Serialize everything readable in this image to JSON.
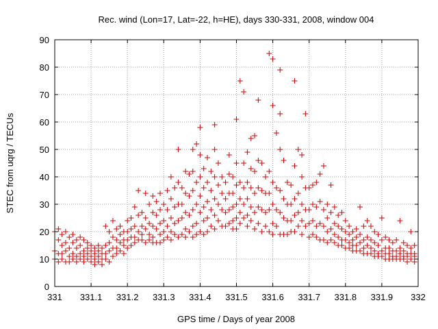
{
  "chart_data": {
    "type": "scatter",
    "title": "Rec. wind (Lon=17, Lat=-22, h=HE), days 330-331, 2008, window 004",
    "xlabel": "GPS time / Days of year 2008",
    "ylabel": "STEC from uqrg / TECUs",
    "xlim": [
      331,
      332
    ],
    "ylim": [
      0,
      90
    ],
    "x_ticks": [
      331,
      331.1,
      331.2,
      331.3,
      331.4,
      331.5,
      331.6,
      331.7,
      331.8,
      331.9,
      332
    ],
    "x_tick_labels": [
      "331",
      "331.1",
      "331.2",
      "331.3",
      "331.4",
      "331.5",
      "331.6",
      "331.7",
      "331.8",
      "331.9",
      "332"
    ],
    "y_ticks": [
      0,
      10,
      20,
      30,
      40,
      50,
      60,
      70,
      80,
      90
    ],
    "y_tick_labels": [
      "0",
      "10",
      "20",
      "30",
      "40",
      "50",
      "60",
      "70",
      "80",
      "90"
    ],
    "grid": true,
    "marker": "+",
    "marker_color": "#cc0000",
    "points": [
      [
        331.0,
        20
      ],
      [
        331.0,
        13
      ],
      [
        331.0,
        10
      ],
      [
        331.01,
        21
      ],
      [
        331.01,
        17
      ],
      [
        331.01,
        12
      ],
      [
        331.01,
        9
      ],
      [
        331.02,
        19
      ],
      [
        331.02,
        15
      ],
      [
        331.02,
        12
      ],
      [
        331.02,
        10
      ],
      [
        331.03,
        20
      ],
      [
        331.03,
        16
      ],
      [
        331.03,
        13
      ],
      [
        331.03,
        9
      ],
      [
        331.04,
        18
      ],
      [
        331.04,
        14
      ],
      [
        331.04,
        11
      ],
      [
        331.04,
        9
      ],
      [
        331.05,
        19
      ],
      [
        331.05,
        16
      ],
      [
        331.05,
        12
      ],
      [
        331.05,
        10
      ],
      [
        331.06,
        17
      ],
      [
        331.06,
        14
      ],
      [
        331.06,
        11
      ],
      [
        331.06,
        9
      ],
      [
        331.07,
        18
      ],
      [
        331.07,
        15
      ],
      [
        331.07,
        12
      ],
      [
        331.07,
        10
      ],
      [
        331.08,
        17
      ],
      [
        331.08,
        13
      ],
      [
        331.08,
        11
      ],
      [
        331.08,
        9
      ],
      [
        331.09,
        16
      ],
      [
        331.09,
        14
      ],
      [
        331.09,
        12
      ],
      [
        331.09,
        10
      ],
      [
        331.1,
        15
      ],
      [
        331.1,
        13
      ],
      [
        331.1,
        11
      ],
      [
        331.1,
        9
      ],
      [
        331.11,
        14
      ],
      [
        331.11,
        12
      ],
      [
        331.11,
        10
      ],
      [
        331.11,
        8
      ],
      [
        331.12,
        15
      ],
      [
        331.12,
        13
      ],
      [
        331.12,
        11
      ],
      [
        331.12,
        9
      ],
      [
        331.13,
        14
      ],
      [
        331.13,
        12
      ],
      [
        331.13,
        10
      ],
      [
        331.13,
        8
      ],
      [
        331.14,
        22
      ],
      [
        331.14,
        15
      ],
      [
        331.14,
        12
      ],
      [
        331.14,
        10
      ],
      [
        331.15,
        20
      ],
      [
        331.15,
        16
      ],
      [
        331.15,
        13
      ],
      [
        331.15,
        9
      ],
      [
        331.16,
        24
      ],
      [
        331.16,
        18
      ],
      [
        331.16,
        14
      ],
      [
        331.16,
        11
      ],
      [
        331.17,
        21
      ],
      [
        331.17,
        17
      ],
      [
        331.17,
        14
      ],
      [
        331.17,
        12
      ],
      [
        331.18,
        22
      ],
      [
        331.18,
        19
      ],
      [
        331.18,
        16
      ],
      [
        331.18,
        13
      ],
      [
        331.19,
        20
      ],
      [
        331.19,
        17
      ],
      [
        331.19,
        15
      ],
      [
        331.19,
        12
      ],
      [
        331.2,
        24
      ],
      [
        331.2,
        20
      ],
      [
        331.2,
        17
      ],
      [
        331.2,
        14
      ],
      [
        331.21,
        25
      ],
      [
        331.21,
        21
      ],
      [
        331.21,
        18
      ],
      [
        331.21,
        15
      ],
      [
        331.22,
        29
      ],
      [
        331.22,
        22
      ],
      [
        331.22,
        18
      ],
      [
        331.22,
        16
      ],
      [
        331.23,
        35
      ],
      [
        331.23,
        26
      ],
      [
        331.23,
        20
      ],
      [
        331.23,
        17
      ],
      [
        331.24,
        27
      ],
      [
        331.24,
        22
      ],
      [
        331.24,
        19
      ],
      [
        331.24,
        17
      ],
      [
        331.25,
        34
      ],
      [
        331.25,
        25
      ],
      [
        331.25,
        21
      ],
      [
        331.25,
        16
      ],
      [
        331.26,
        30
      ],
      [
        331.26,
        23
      ],
      [
        331.26,
        19
      ],
      [
        331.26,
        17
      ],
      [
        331.27,
        33
      ],
      [
        331.27,
        27
      ],
      [
        331.27,
        22
      ],
      [
        331.27,
        18
      ],
      [
        331.27,
        16
      ],
      [
        331.28,
        31
      ],
      [
        331.28,
        26
      ],
      [
        331.28,
        21
      ],
      [
        331.28,
        16
      ],
      [
        331.29,
        34
      ],
      [
        331.29,
        28
      ],
      [
        331.29,
        23
      ],
      [
        331.29,
        19
      ],
      [
        331.29,
        16
      ],
      [
        331.3,
        30
      ],
      [
        331.3,
        24
      ],
      [
        331.3,
        20
      ],
      [
        331.3,
        17
      ],
      [
        331.31,
        35
      ],
      [
        331.31,
        28
      ],
      [
        331.31,
        22
      ],
      [
        331.31,
        18
      ],
      [
        331.32,
        40
      ],
      [
        331.32,
        32
      ],
      [
        331.32,
        25
      ],
      [
        331.32,
        20
      ],
      [
        331.32,
        17
      ],
      [
        331.33,
        36
      ],
      [
        331.33,
        29
      ],
      [
        331.33,
        23
      ],
      [
        331.33,
        19
      ],
      [
        331.34,
        50
      ],
      [
        331.34,
        38
      ],
      [
        331.34,
        30
      ],
      [
        331.34,
        24
      ],
      [
        331.34,
        18
      ],
      [
        331.35,
        36
      ],
      [
        331.35,
        30
      ],
      [
        331.35,
        25
      ],
      [
        331.35,
        19
      ],
      [
        331.36,
        42
      ],
      [
        331.36,
        34
      ],
      [
        331.36,
        27
      ],
      [
        331.36,
        21
      ],
      [
        331.36,
        18
      ],
      [
        331.37,
        41
      ],
      [
        331.37,
        33
      ],
      [
        331.37,
        26
      ],
      [
        331.37,
        20
      ],
      [
        331.38,
        50
      ],
      [
        331.38,
        42
      ],
      [
        331.38,
        35
      ],
      [
        331.38,
        28
      ],
      [
        331.38,
        22
      ],
      [
        331.38,
        18
      ],
      [
        331.39,
        52
      ],
      [
        331.39,
        38
      ],
      [
        331.39,
        30
      ],
      [
        331.39,
        23
      ],
      [
        331.39,
        19
      ],
      [
        331.4,
        58
      ],
      [
        331.4,
        48
      ],
      [
        331.4,
        40
      ],
      [
        331.4,
        33
      ],
      [
        331.4,
        27
      ],
      [
        331.4,
        20
      ],
      [
        331.41,
        43
      ],
      [
        331.41,
        36
      ],
      [
        331.41,
        29
      ],
      [
        331.41,
        24
      ],
      [
        331.41,
        19
      ],
      [
        331.42,
        47
      ],
      [
        331.42,
        38
      ],
      [
        331.42,
        31
      ],
      [
        331.42,
        25
      ],
      [
        331.42,
        20
      ],
      [
        331.43,
        42
      ],
      [
        331.43,
        35
      ],
      [
        331.43,
        28
      ],
      [
        331.43,
        22
      ],
      [
        331.44,
        59
      ],
      [
        331.44,
        50
      ],
      [
        331.44,
        40
      ],
      [
        331.44,
        32
      ],
      [
        331.44,
        26
      ],
      [
        331.44,
        21
      ],
      [
        331.45,
        45
      ],
      [
        331.45,
        37
      ],
      [
        331.45,
        30
      ],
      [
        331.45,
        24
      ],
      [
        331.46,
        40
      ],
      [
        331.46,
        34
      ],
      [
        331.46,
        28
      ],
      [
        331.46,
        22
      ],
      [
        331.47,
        38
      ],
      [
        331.47,
        32
      ],
      [
        331.47,
        27
      ],
      [
        331.47,
        22
      ],
      [
        331.48,
        48
      ],
      [
        331.48,
        41
      ],
      [
        331.48,
        34
      ],
      [
        331.48,
        28
      ],
      [
        331.48,
        23
      ],
      [
        331.49,
        40
      ],
      [
        331.49,
        34
      ],
      [
        331.49,
        29
      ],
      [
        331.49,
        24
      ],
      [
        331.49,
        21
      ],
      [
        331.5,
        61
      ],
      [
        331.5,
        45
      ],
      [
        331.5,
        37
      ],
      [
        331.5,
        30
      ],
      [
        331.5,
        25
      ],
      [
        331.5,
        21
      ],
      [
        331.51,
        75
      ],
      [
        331.51,
        38
      ],
      [
        331.51,
        32
      ],
      [
        331.51,
        27
      ],
      [
        331.51,
        23
      ],
      [
        331.52,
        71
      ],
      [
        331.52,
        45
      ],
      [
        331.52,
        36
      ],
      [
        331.52,
        30
      ],
      [
        331.52,
        25
      ],
      [
        331.53,
        49
      ],
      [
        331.53,
        38
      ],
      [
        331.53,
        32
      ],
      [
        331.53,
        26
      ],
      [
        331.53,
        22
      ],
      [
        331.54,
        54
      ],
      [
        331.54,
        43
      ],
      [
        331.54,
        36
      ],
      [
        331.54,
        29
      ],
      [
        331.54,
        24
      ],
      [
        331.55,
        55
      ],
      [
        331.55,
        42
      ],
      [
        331.55,
        34
      ],
      [
        331.55,
        27
      ],
      [
        331.55,
        21
      ],
      [
        331.56,
        68
      ],
      [
        331.56,
        46
      ],
      [
        331.56,
        36
      ],
      [
        331.56,
        29
      ],
      [
        331.56,
        23
      ],
      [
        331.57,
        45
      ],
      [
        331.57,
        35
      ],
      [
        331.57,
        28
      ],
      [
        331.57,
        20
      ],
      [
        331.58,
        40
      ],
      [
        331.58,
        34
      ],
      [
        331.58,
        27
      ],
      [
        331.58,
        22
      ],
      [
        331.59,
        85
      ],
      [
        331.59,
        42
      ],
      [
        331.59,
        34
      ],
      [
        331.59,
        28
      ],
      [
        331.59,
        20
      ],
      [
        331.6,
        83
      ],
      [
        331.6,
        66
      ],
      [
        331.6,
        38
      ],
      [
        331.6,
        30
      ],
      [
        331.6,
        23
      ],
      [
        331.6,
        19
      ],
      [
        331.61,
        56
      ],
      [
        331.61,
        36
      ],
      [
        331.61,
        28
      ],
      [
        331.61,
        22
      ],
      [
        331.62,
        79
      ],
      [
        331.62,
        63
      ],
      [
        331.62,
        50
      ],
      [
        331.62,
        35
      ],
      [
        331.62,
        27
      ],
      [
        331.62,
        19
      ],
      [
        331.63,
        46
      ],
      [
        331.63,
        32
      ],
      [
        331.63,
        25
      ],
      [
        331.63,
        19
      ],
      [
        331.64,
        38
      ],
      [
        331.64,
        30
      ],
      [
        331.64,
        24
      ],
      [
        331.64,
        19
      ],
      [
        331.65,
        37
      ],
      [
        331.65,
        30
      ],
      [
        331.65,
        24
      ],
      [
        331.65,
        20
      ],
      [
        331.66,
        75
      ],
      [
        331.66,
        44
      ],
      [
        331.66,
        32
      ],
      [
        331.66,
        26
      ],
      [
        331.66,
        20
      ],
      [
        331.67,
        50
      ],
      [
        331.67,
        34
      ],
      [
        331.67,
        27
      ],
      [
        331.67,
        22
      ],
      [
        331.68,
        48
      ],
      [
        331.68,
        40
      ],
      [
        331.68,
        30
      ],
      [
        331.68,
        24
      ],
      [
        331.68,
        19
      ],
      [
        331.69,
        63
      ],
      [
        331.69,
        36
      ],
      [
        331.69,
        28
      ],
      [
        331.69,
        22
      ],
      [
        331.7,
        36
      ],
      [
        331.7,
        28
      ],
      [
        331.7,
        23
      ],
      [
        331.7,
        18
      ],
      [
        331.71,
        37
      ],
      [
        331.71,
        30
      ],
      [
        331.71,
        24
      ],
      [
        331.71,
        19
      ],
      [
        331.72,
        38
      ],
      [
        331.72,
        29
      ],
      [
        331.72,
        22
      ],
      [
        331.72,
        18
      ],
      [
        331.73,
        41
      ],
      [
        331.73,
        31
      ],
      [
        331.73,
        23
      ],
      [
        331.73,
        17
      ],
      [
        331.74,
        44
      ],
      [
        331.74,
        28
      ],
      [
        331.74,
        22
      ],
      [
        331.74,
        17
      ],
      [
        331.75,
        30
      ],
      [
        331.75,
        25
      ],
      [
        331.75,
        20
      ],
      [
        331.75,
        16
      ],
      [
        331.76,
        37
      ],
      [
        331.76,
        27
      ],
      [
        331.76,
        21
      ],
      [
        331.76,
        17
      ],
      [
        331.77,
        29
      ],
      [
        331.77,
        23
      ],
      [
        331.77,
        19
      ],
      [
        331.77,
        16
      ],
      [
        331.78,
        26
      ],
      [
        331.78,
        22
      ],
      [
        331.78,
        18
      ],
      [
        331.78,
        15
      ],
      [
        331.79,
        27
      ],
      [
        331.79,
        21
      ],
      [
        331.79,
        17
      ],
      [
        331.79,
        15
      ],
      [
        331.8,
        24
      ],
      [
        331.8,
        20
      ],
      [
        331.8,
        17
      ],
      [
        331.8,
        14
      ],
      [
        331.81,
        22
      ],
      [
        331.81,
        19
      ],
      [
        331.81,
        16
      ],
      [
        331.81,
        14
      ],
      [
        331.82,
        20
      ],
      [
        331.82,
        17
      ],
      [
        331.82,
        15
      ],
      [
        331.82,
        13
      ],
      [
        331.83,
        21
      ],
      [
        331.83,
        18
      ],
      [
        331.83,
        15
      ],
      [
        331.83,
        13
      ],
      [
        331.84,
        29
      ],
      [
        331.84,
        19
      ],
      [
        331.84,
        16
      ],
      [
        331.84,
        13
      ],
      [
        331.85,
        22
      ],
      [
        331.85,
        17
      ],
      [
        331.85,
        14
      ],
      [
        331.85,
        12
      ],
      [
        331.86,
        24
      ],
      [
        331.86,
        18
      ],
      [
        331.86,
        15
      ],
      [
        331.86,
        12
      ],
      [
        331.87,
        22
      ],
      [
        331.87,
        17
      ],
      [
        331.87,
        14
      ],
      [
        331.87,
        12
      ],
      [
        331.88,
        20
      ],
      [
        331.88,
        16
      ],
      [
        331.88,
        13
      ],
      [
        331.88,
        11
      ],
      [
        331.89,
        19
      ],
      [
        331.89,
        15
      ],
      [
        331.89,
        12
      ],
      [
        331.89,
        11
      ],
      [
        331.9,
        25
      ],
      [
        331.9,
        17
      ],
      [
        331.9,
        13
      ],
      [
        331.9,
        11
      ],
      [
        331.91,
        18
      ],
      [
        331.91,
        14
      ],
      [
        331.91,
        12
      ],
      [
        331.91,
        10
      ],
      [
        331.92,
        17
      ],
      [
        331.92,
        14
      ],
      [
        331.92,
        12
      ],
      [
        331.92,
        10
      ],
      [
        331.93,
        16
      ],
      [
        331.93,
        13
      ],
      [
        331.93,
        11
      ],
      [
        331.93,
        10
      ],
      [
        331.94,
        17
      ],
      [
        331.94,
        13
      ],
      [
        331.94,
        11
      ],
      [
        331.94,
        10
      ],
      [
        331.95,
        24
      ],
      [
        331.95,
        14
      ],
      [
        331.95,
        12
      ],
      [
        331.95,
        10
      ],
      [
        331.96,
        16
      ],
      [
        331.96,
        13
      ],
      [
        331.96,
        11
      ],
      [
        331.96,
        10
      ],
      [
        331.97,
        15
      ],
      [
        331.97,
        12
      ],
      [
        331.97,
        11
      ],
      [
        331.97,
        9
      ],
      [
        331.98,
        20
      ],
      [
        331.98,
        14
      ],
      [
        331.98,
        12
      ],
      [
        331.98,
        10
      ],
      [
        331.99,
        15
      ],
      [
        331.99,
        12
      ],
      [
        331.99,
        11
      ],
      [
        331.99,
        9
      ]
    ]
  }
}
